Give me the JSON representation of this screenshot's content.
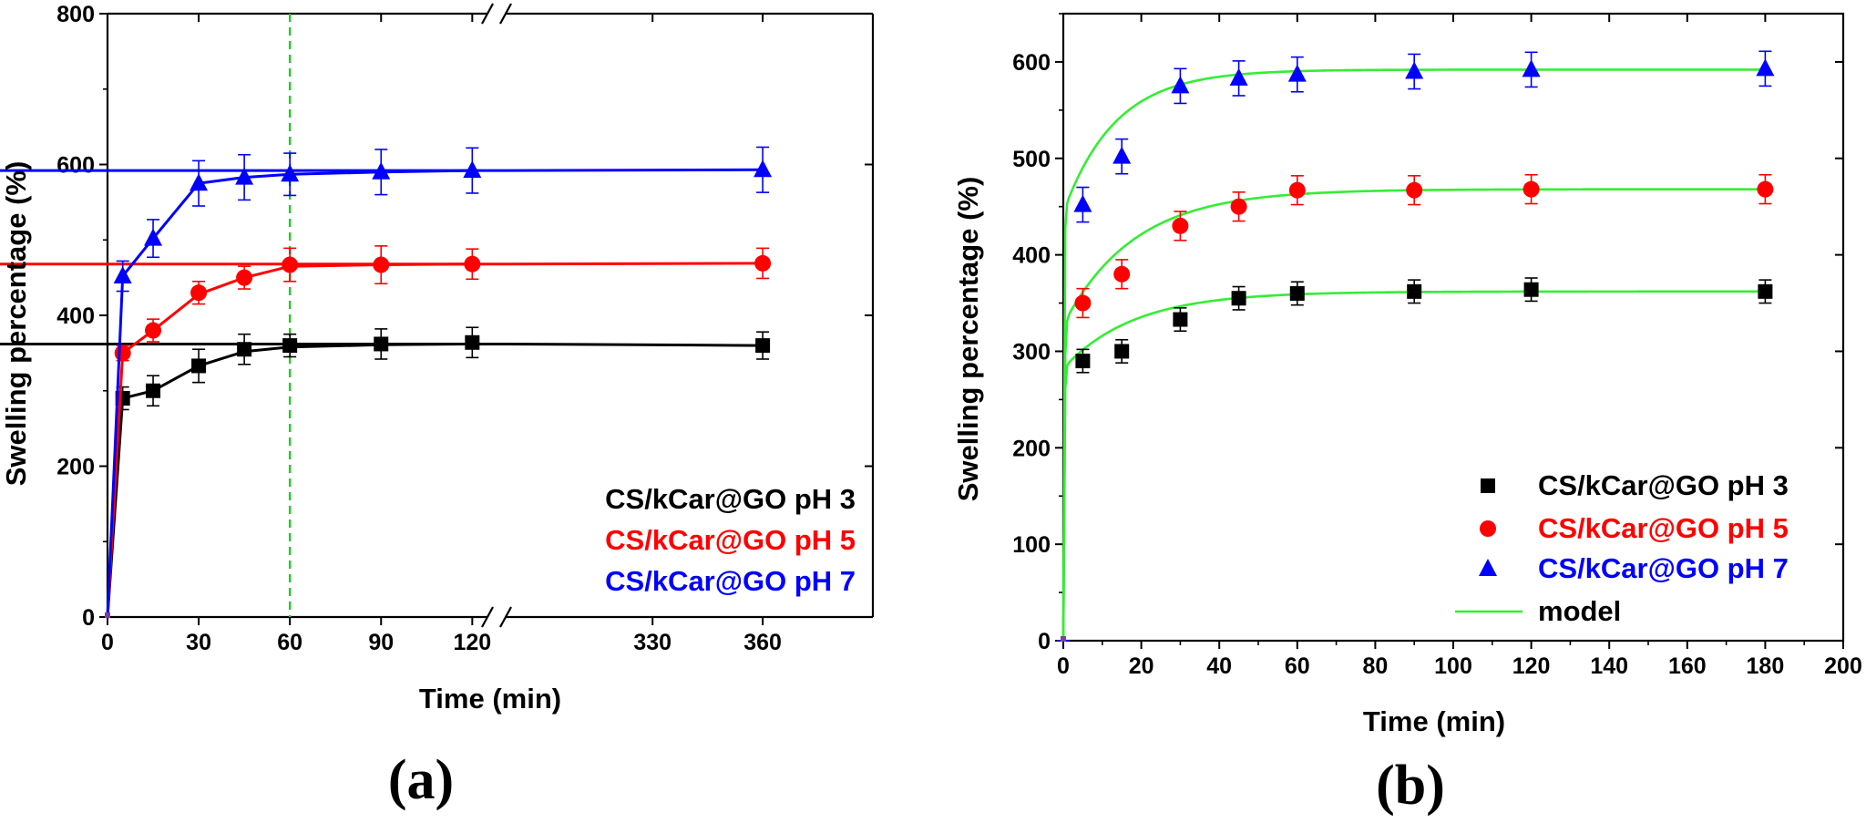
{
  "chart_data": [
    {
      "type": "line",
      "panel": "(a)",
      "xlabel": "Time (min)",
      "ylabel": "Swelling percentage (%)",
      "x_axis_break": true,
      "x_segments": [
        {
          "xlim": [
            0,
            125
          ],
          "ticks": [
            0,
            30,
            60,
            90,
            120
          ],
          "tick_labels": [
            "0",
            "30",
            "60",
            "90",
            "120"
          ]
        },
        {
          "xlim": [
            290,
            390
          ],
          "ticks": [
            330,
            360
          ],
          "tick_labels": [
            "330",
            "360"
          ]
        }
      ],
      "ylim": [
        0,
        800
      ],
      "yticks": [
        0,
        200,
        400,
        600,
        800
      ],
      "ytick_labels": [
        "0",
        "200",
        "400",
        "600",
        "800"
      ],
      "reference_line": {
        "x": 60,
        "style": "dashed",
        "color": "#22cc22"
      },
      "legend_position": "bottom-right",
      "series": [
        {
          "name": "CS/kCar@GO pH 3",
          "color": "#000000",
          "marker": "square",
          "x": [
            0,
            5,
            15,
            30,
            45,
            60,
            90,
            120,
            360
          ],
          "values": [
            0,
            290,
            300,
            333,
            355,
            360,
            362,
            364,
            360
          ],
          "errors": [
            0,
            15,
            20,
            22,
            20,
            15,
            20,
            20,
            18
          ],
          "curve": {
            "x": [
              0,
              5,
              15,
              30,
              45,
              60,
              90,
              120,
              128,
              290,
              360
            ],
            "y": [
              0,
              290,
              300,
              333,
              352,
              358,
              361,
              362,
              362,
              362,
              360
            ]
          }
        },
        {
          "name": "CS/kCar@GO pH 5",
          "color": "#ff0000",
          "marker": "circle",
          "x": [
            0,
            5,
            15,
            30,
            45,
            60,
            90,
            120,
            360
          ],
          "values": [
            0,
            350,
            380,
            430,
            450,
            467,
            467,
            468,
            469
          ],
          "errors": [
            0,
            10,
            15,
            15,
            15,
            22,
            25,
            20,
            20
          ],
          "curve": {
            "x": [
              0,
              5,
              15,
              30,
              45,
              60,
              90,
              120,
              128,
              290,
              360
            ],
            "y": [
              0,
              350,
              380,
              428,
              450,
              465,
              467,
              468,
              468,
              468,
              469
            ]
          }
        },
        {
          "name": "CS/kCar@GO pH 7",
          "color": "#0000ff",
          "marker": "triangle",
          "x": [
            0,
            5,
            15,
            30,
            45,
            60,
            90,
            120,
            360
          ],
          "values": [
            0,
            452,
            502,
            575,
            583,
            587,
            590,
            592,
            593
          ],
          "errors": [
            0,
            20,
            25,
            30,
            30,
            28,
            30,
            30,
            30
          ],
          "curve": {
            "x": [
              0,
              5,
              15,
              30,
              45,
              60,
              90,
              120,
              128,
              290,
              360
            ],
            "y": [
              0,
              452,
              502,
              575,
              583,
              587,
              590,
              592,
              592,
              592,
              593
            ]
          }
        }
      ]
    },
    {
      "type": "line",
      "panel": "(b)",
      "xlabel": "Time (min)",
      "ylabel": "Swelling percentage (%)",
      "xlim": [
        0,
        200
      ],
      "xticks": [
        0,
        20,
        40,
        60,
        80,
        100,
        120,
        140,
        160,
        180,
        200
      ],
      "xtick_labels": [
        "0",
        "20",
        "40",
        "60",
        "80",
        "100",
        "120",
        "140",
        "160",
        "180",
        "200"
      ],
      "ylim": [
        0,
        650
      ],
      "yticks": [
        0,
        100,
        200,
        300,
        400,
        500,
        600
      ],
      "ytick_labels": [
        "0",
        "100",
        "200",
        "300",
        "400",
        "500",
        "600"
      ],
      "legend_position": "bottom-right",
      "model_name": "model",
      "model_color": "#33ee33",
      "series": [
        {
          "name": "CS/kCar@GO pH 3",
          "color": "#000000",
          "marker": "square",
          "x": [
            0,
            5,
            15,
            30,
            45,
            60,
            90,
            120,
            180
          ],
          "values": [
            0,
            290,
            300,
            333,
            355,
            360,
            362,
            364,
            362
          ],
          "errors": [
            0,
            12,
            12,
            12,
            12,
            12,
            12,
            12,
            12
          ],
          "model": {
            "k": 0.055,
            "plateau": 362,
            "fast_fraction": 0.78,
            "fast_k": 0.5
          }
        },
        {
          "name": "CS/kCar@GO pH 5",
          "color": "#ff0000",
          "marker": "circle",
          "x": [
            0,
            5,
            15,
            30,
            45,
            60,
            90,
            120,
            180
          ],
          "values": [
            0,
            350,
            380,
            430,
            450,
            467,
            467,
            468,
            468
          ],
          "errors": [
            0,
            15,
            15,
            15,
            15,
            15,
            15,
            15,
            15
          ],
          "model": {
            "k": 0.055,
            "plateau": 468,
            "fast_fraction": 0.7,
            "fast_k": 0.45
          }
        },
        {
          "name": "CS/kCar@GO pH 7",
          "color": "#0000ff",
          "marker": "triangle",
          "x": [
            0,
            5,
            15,
            30,
            45,
            60,
            90,
            120,
            180
          ],
          "values": [
            0,
            452,
            502,
            575,
            583,
            587,
            590,
            592,
            593
          ],
          "errors": [
            0,
            18,
            18,
            18,
            18,
            18,
            18,
            18,
            18
          ],
          "model": {
            "k": 0.075,
            "plateau": 592,
            "fast_fraction": 0.75,
            "fast_k": 0.6
          }
        }
      ]
    }
  ]
}
